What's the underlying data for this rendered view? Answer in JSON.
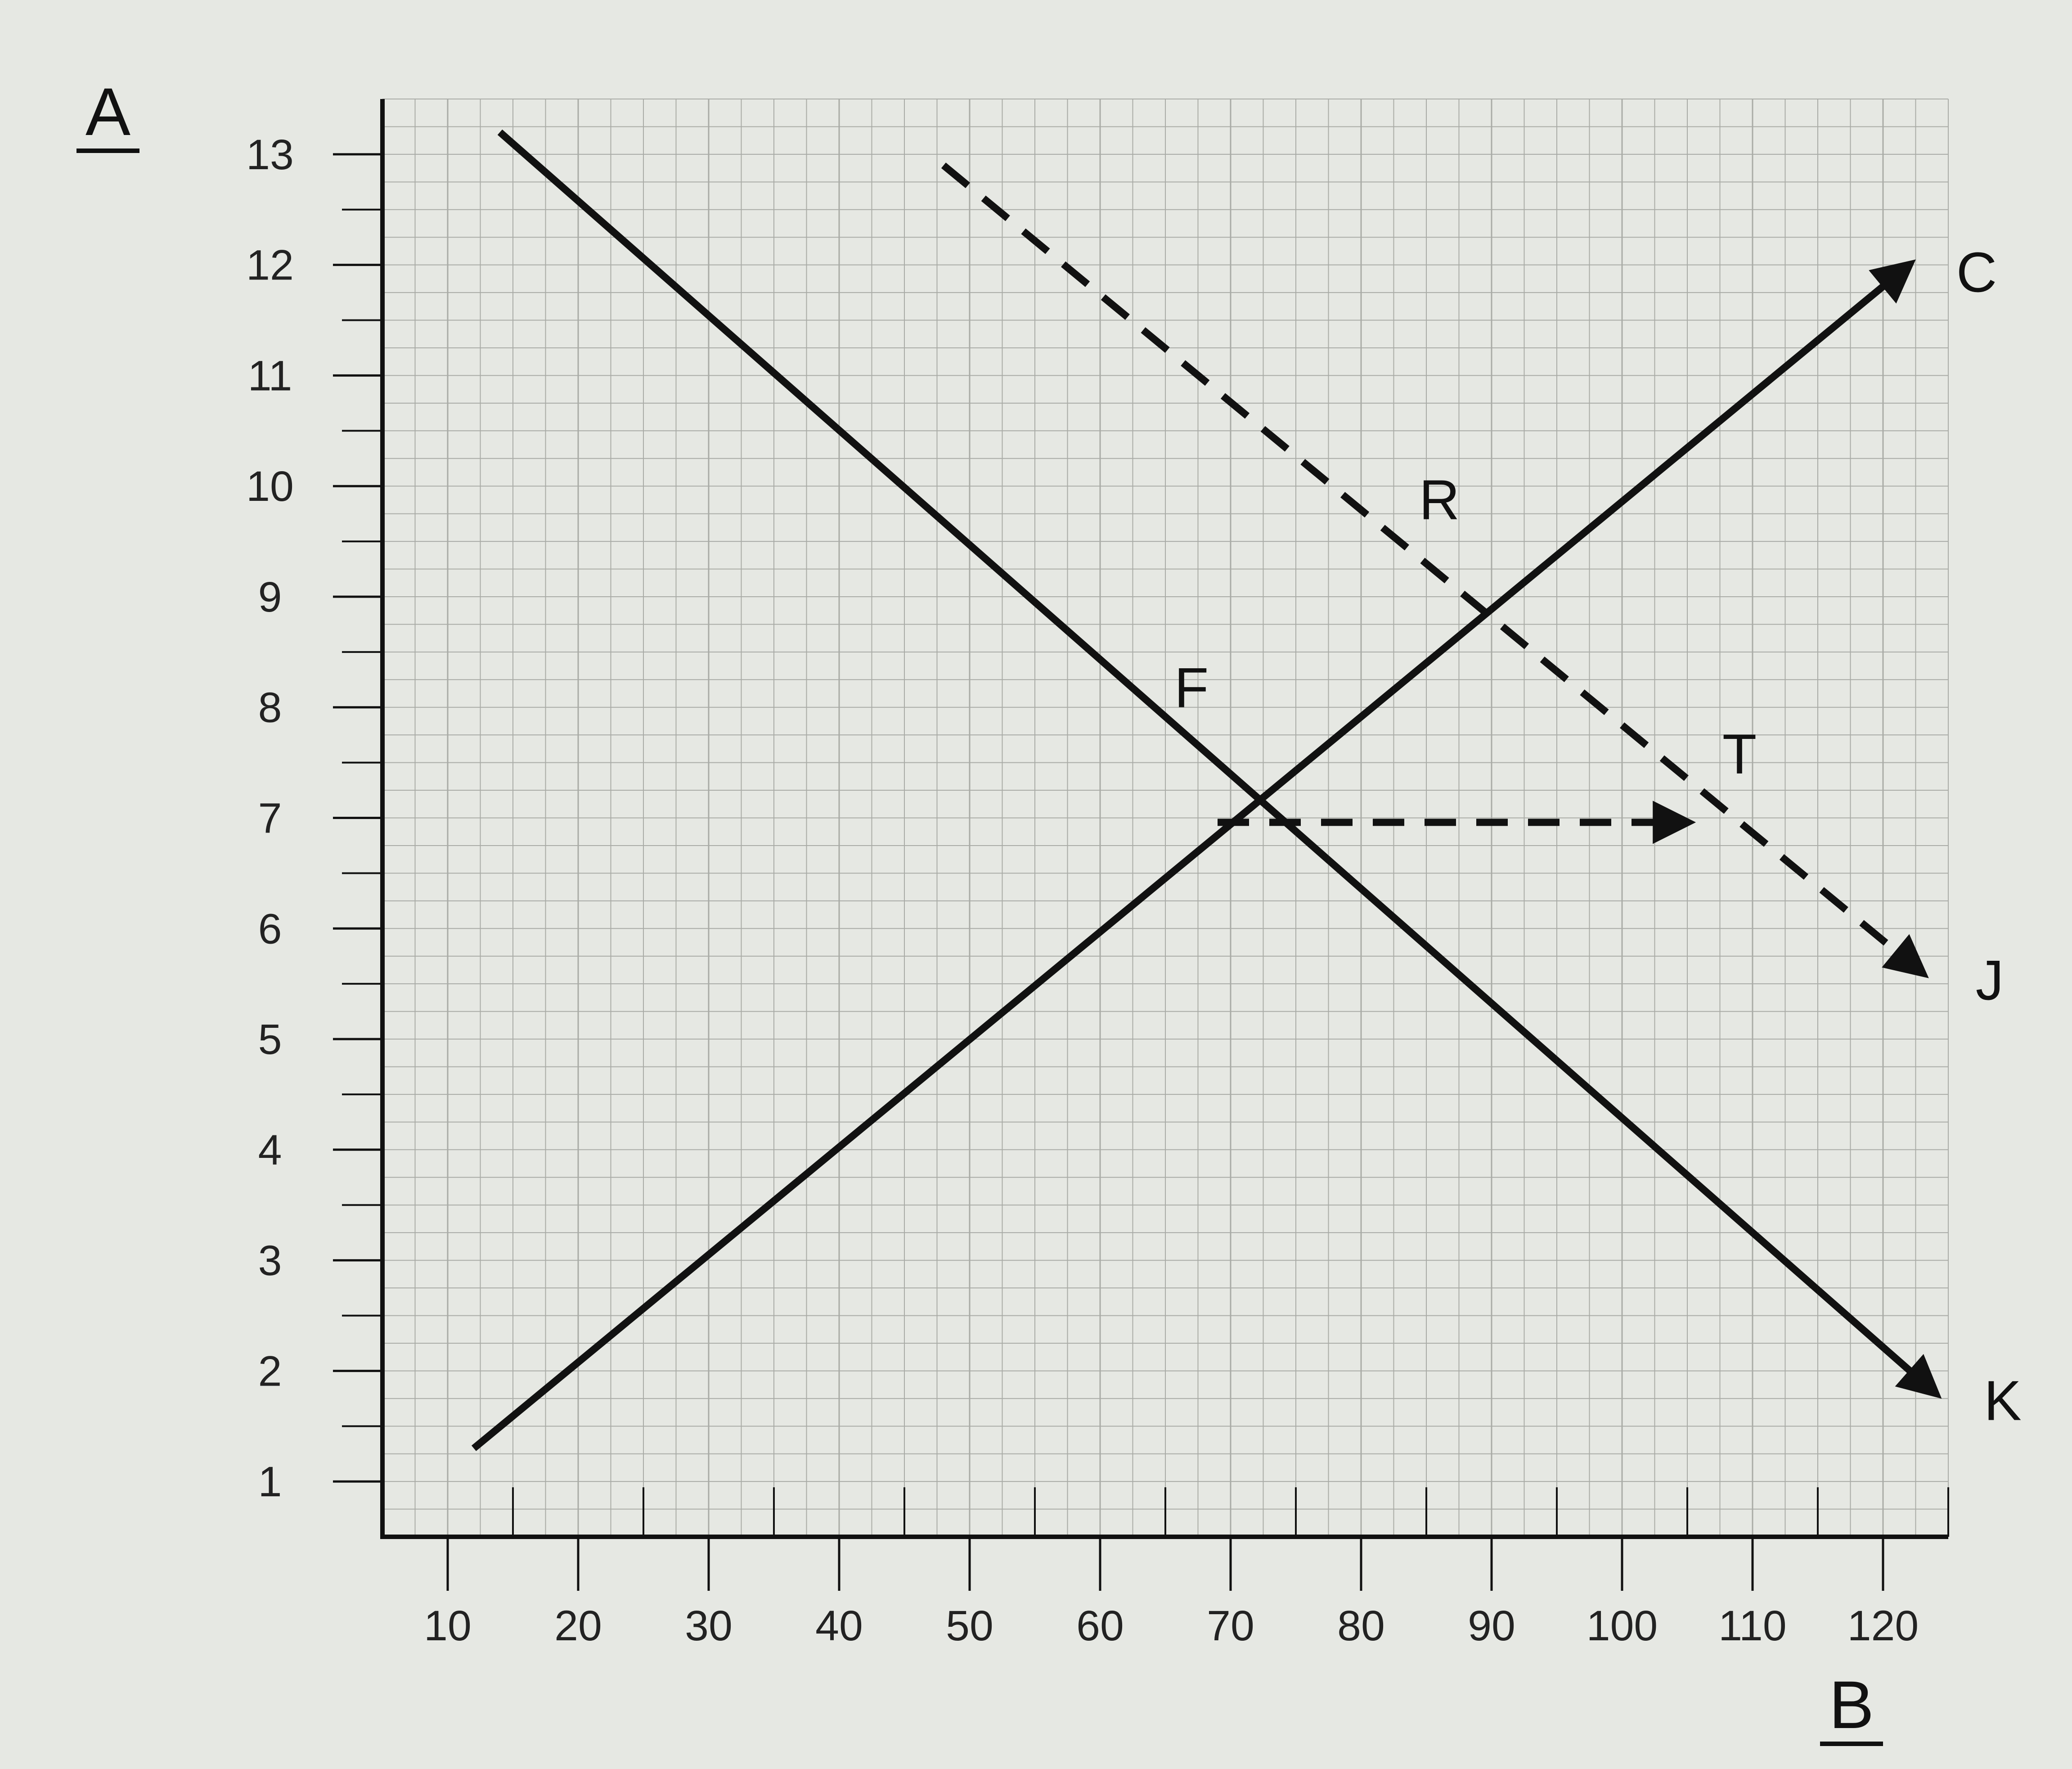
{
  "chart_data": {
    "type": "line",
    "ylabel": "A",
    "xlabel": "B",
    "xlim": [
      5,
      125
    ],
    "ylim": [
      0.5,
      13.5
    ],
    "x_ticks": [
      10,
      20,
      30,
      40,
      50,
      60,
      70,
      80,
      90,
      100,
      110,
      120
    ],
    "y_ticks": [
      1,
      2,
      3,
      4,
      5,
      6,
      7,
      8,
      9,
      10,
      11,
      12,
      13
    ],
    "grid": true,
    "series": [
      {
        "name": "C",
        "style": "solid",
        "arrow": "end",
        "points": [
          [
            12,
            1.3
          ],
          [
            122,
            12.0
          ]
        ]
      },
      {
        "name": "K",
        "style": "solid",
        "arrow": "end",
        "points": [
          [
            14,
            13.2
          ],
          [
            124,
            1.8
          ]
        ]
      },
      {
        "name": "J",
        "style": "dashed",
        "arrow": "end",
        "points": [
          [
            48,
            12.9
          ],
          [
            123,
            5.6
          ]
        ]
      },
      {
        "name": "",
        "style": "dashed",
        "arrow": "end",
        "points": [
          [
            69,
            6.96
          ],
          [
            105,
            6.96
          ]
        ]
      }
    ],
    "annotations": [
      {
        "text": "R",
        "x": 86,
        "y": 9.7
      },
      {
        "text": "F",
        "x": 67,
        "y": 8.0
      },
      {
        "text": "T",
        "x": 109,
        "y": 7.4
      }
    ],
    "colors": {
      "background": "#e6e8e3",
      "grid": "#a9aba6",
      "ink": "#111111"
    }
  }
}
